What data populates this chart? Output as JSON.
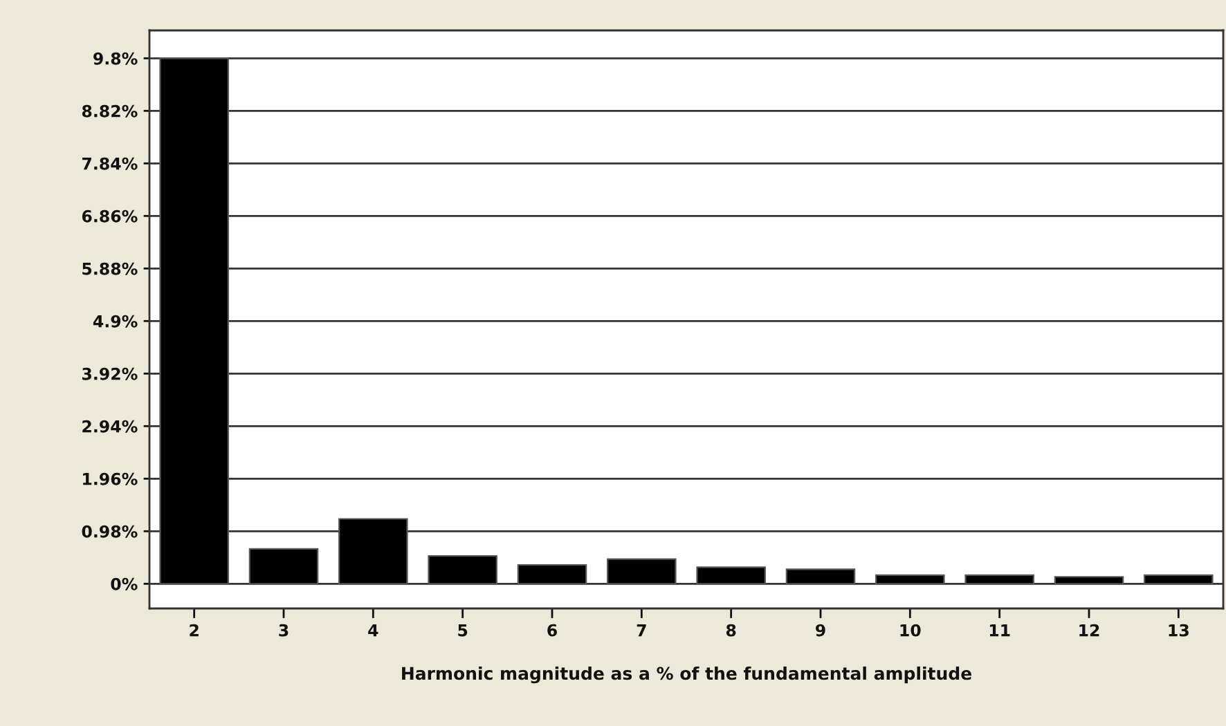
{
  "chart_data": {
    "type": "bar",
    "xlabel": "Harmonic magnitude as a % of the fundamental amplitude",
    "categories": [
      "2",
      "3",
      "4",
      "5",
      "6",
      "7",
      "8",
      "9",
      "10",
      "11",
      "12",
      "13"
    ],
    "values": [
      9.8,
      0.65,
      1.21,
      0.52,
      0.35,
      0.46,
      0.31,
      0.27,
      0.16,
      0.16,
      0.13,
      0.16
    ],
    "color": "#000000",
    "ylim": [
      -0.46,
      10.32
    ],
    "yticks": [
      {
        "value": 0,
        "label": "0%"
      },
      {
        "value": 0.98,
        "label": "0.98%"
      },
      {
        "value": 1.96,
        "label": "1.96%"
      },
      {
        "value": 2.94,
        "label": "2.94%"
      },
      {
        "value": 3.92,
        "label": "3.92%"
      },
      {
        "value": 4.9,
        "label": "4.9%"
      },
      {
        "value": 5.88,
        "label": "5.88%"
      },
      {
        "value": 6.86,
        "label": "6.86%"
      },
      {
        "value": 7.84,
        "label": "7.84%"
      },
      {
        "value": 8.82,
        "label": "8.82%"
      },
      {
        "value": 9.8,
        "label": "9.8%"
      }
    ],
    "grid": "y",
    "legend": false
  }
}
